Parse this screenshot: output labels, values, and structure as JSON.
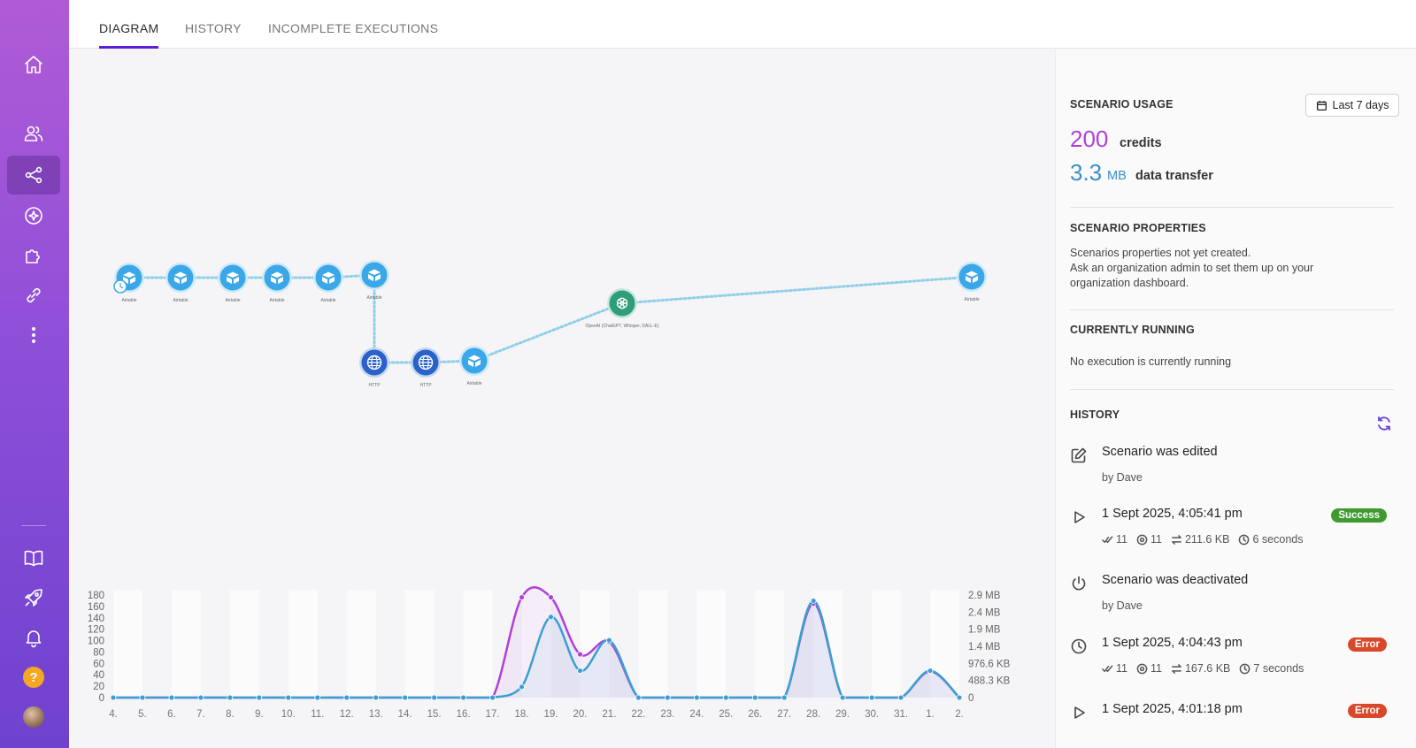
{
  "tabs": [
    {
      "label": "DIAGRAM",
      "active": true
    },
    {
      "label": "HISTORY",
      "active": false
    },
    {
      "label": "INCOMPLETE EXECUTIONS",
      "active": false
    }
  ],
  "sidebar": {
    "items": [
      "home-icon",
      "team-icon",
      "scenarios-icon",
      "ai-icon",
      "apps-icon",
      "connections-icon",
      "more-icon"
    ],
    "bottom": [
      "docs-icon",
      "rocket-icon",
      "bell-icon",
      "help-icon",
      "avatar"
    ],
    "help_label": "?"
  },
  "usage": {
    "title": "SCENARIO USAGE",
    "range_label": "Last 7 days",
    "credits_value": "200",
    "credits_label": "credits",
    "transfer_value": "3.3",
    "transfer_unit": "MB",
    "transfer_label": "data transfer",
    "credits_color": "#b040d8",
    "transfer_color": "#3b8fc7"
  },
  "properties": {
    "title": "SCENARIO PROPERTIES",
    "line1": "Scenarios properties not yet created.",
    "line2": "Ask an organization admin to set them up on your",
    "line3": "organization dashboard."
  },
  "running": {
    "title": "CURRENTLY RUNNING",
    "text": "No execution is currently running"
  },
  "history": {
    "title": "HISTORY",
    "items": [
      {
        "icon": "edit-icon",
        "title": "Scenario was edited",
        "sub": "by Dave"
      },
      {
        "icon": "play-icon",
        "title": "1 Sept 2025, 4:05:41 pm",
        "badge": "Success",
        "ops": "11",
        "views": "11",
        "transfer": "211.6 KB",
        "duration": "6 seconds"
      },
      {
        "icon": "power-icon",
        "title": "Scenario was deactivated",
        "sub": "by Dave"
      },
      {
        "icon": "clock-icon",
        "title": "1 Sept 2025, 4:04:43 pm",
        "badge": "Error",
        "ops": "11",
        "views": "11",
        "transfer": "167.6 KB",
        "duration": "7 seconds"
      },
      {
        "icon": "play-icon",
        "title": "1 Sept 2025, 4:01:18 pm",
        "badge": "Error"
      }
    ],
    "success_color": "#3f9b2f",
    "error_color": "#d9482b"
  },
  "diagram": {
    "nodes": [
      {
        "app": "Airtable",
        "icon": "airtable-icon"
      },
      {
        "app": "Airtable",
        "icon": "airtable-icon"
      },
      {
        "app": "Airtable",
        "icon": "airtable-icon"
      },
      {
        "app": "Airtable",
        "icon": "airtable-icon"
      },
      {
        "app": "Airtable",
        "icon": "airtable-icon"
      },
      {
        "app": "Airtable",
        "icon": "airtable-icon"
      },
      {
        "app": "HTTP",
        "icon": "globe-icon"
      },
      {
        "app": "HTTP",
        "icon": "globe-icon"
      },
      {
        "app": "Airtable",
        "icon": "airtable-icon"
      },
      {
        "app": "OpenAI (ChatGPT, Whisper, DALL-E)",
        "icon": "openai-icon"
      },
      {
        "app": "Airtable",
        "icon": "airtable-icon"
      }
    ]
  },
  "chart_data": {
    "type": "line",
    "categories": [
      "4.",
      "5.",
      "6.",
      "7.",
      "8.",
      "9.",
      "10.",
      "11.",
      "12.",
      "13.",
      "14.",
      "15.",
      "16.",
      "17.",
      "18.",
      "19.",
      "20.",
      "21.",
      "22.",
      "23.",
      "24.",
      "25.",
      "26.",
      "27.",
      "28.",
      "29.",
      "30.",
      "31.",
      "1.",
      "2."
    ],
    "series": [
      {
        "color": "#b040d8",
        "axis": "left",
        "values": [
          0,
          0,
          0,
          0,
          0,
          0,
          0,
          0,
          0,
          0,
          0,
          0,
          0,
          0,
          176,
          176,
          76,
          98,
          0,
          0,
          0,
          0,
          0,
          0,
          165,
          0,
          0,
          0,
          46,
          0
        ]
      },
      {
        "color": "#3b9fcf",
        "axis": "right",
        "values": [
          0,
          0,
          0,
          0,
          0,
          0,
          0,
          0,
          0,
          0,
          0,
          0,
          0,
          0,
          0.3,
          2.25,
          0.75,
          1.6,
          0,
          0,
          0,
          0,
          0,
          0,
          2.7,
          0,
          0,
          0,
          0.75,
          0
        ]
      }
    ],
    "y_left_ticks": [
      "0",
      "20",
      "40",
      "60",
      "80",
      "100",
      "120",
      "140",
      "160",
      "180"
    ],
    "y_left_max": 180,
    "y_right_ticks": [
      "0",
      "488.3 KB",
      "976.6 KB",
      "1.4 MB",
      "1.9 MB",
      "2.4 MB",
      "2.9 MB"
    ],
    "y_right_max": 2.86,
    "grid": false
  }
}
